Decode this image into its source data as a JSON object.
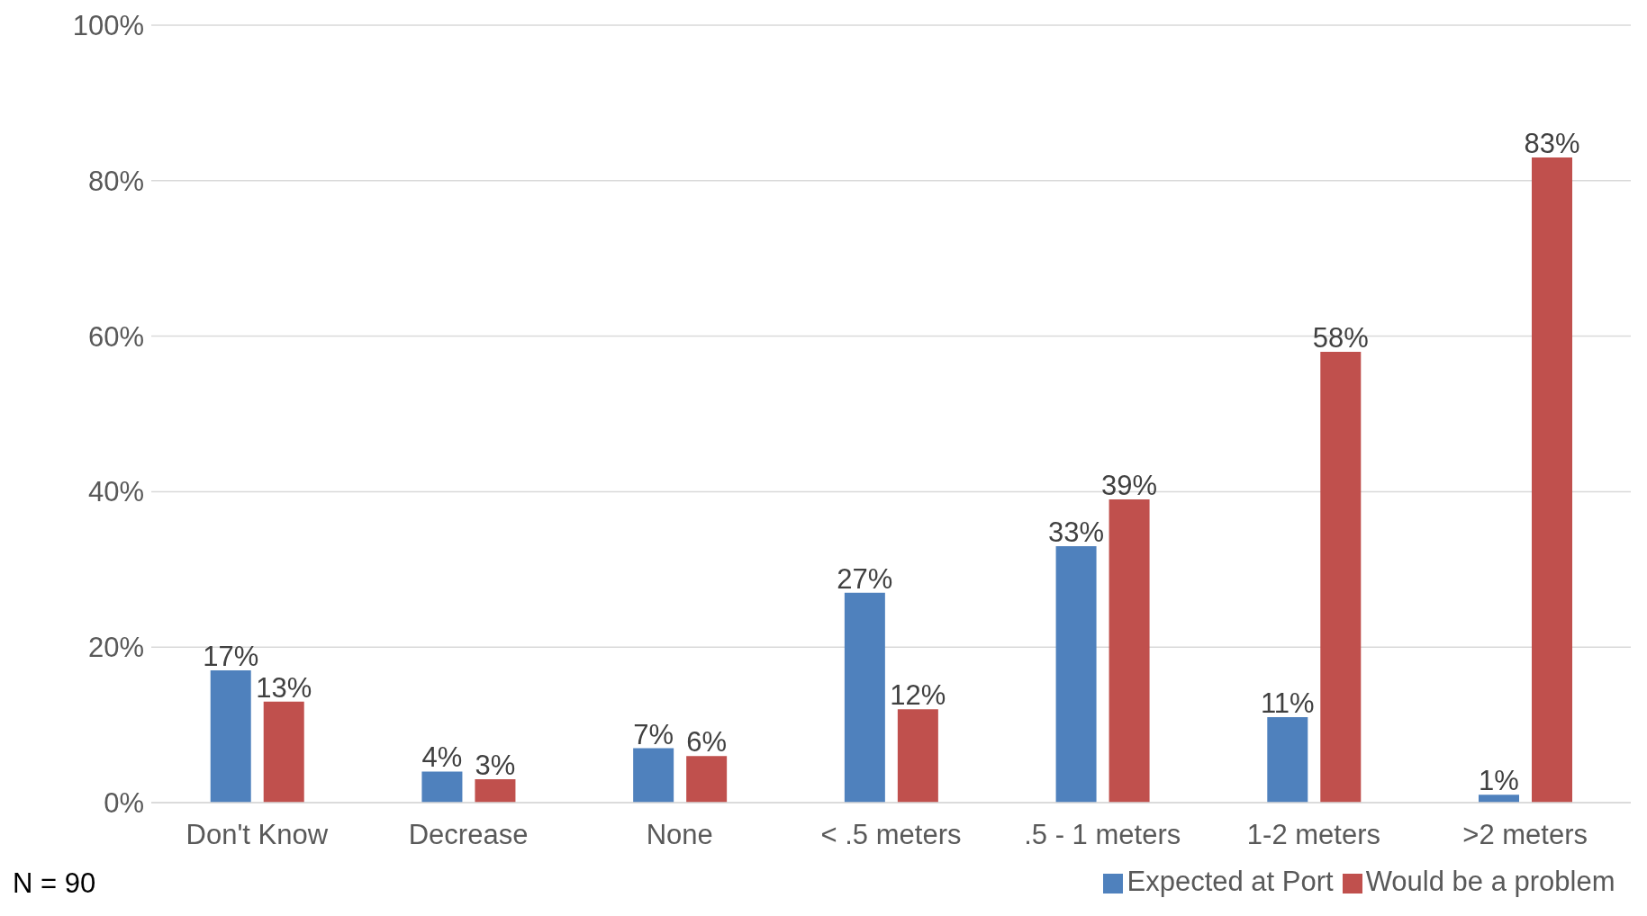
{
  "chart_data": {
    "type": "bar",
    "categories": [
      "Don't Know",
      "Decrease",
      "None",
      "< .5 meters",
      ".5 - 1 meters",
      "1-2 meters",
      ">2 meters"
    ],
    "series": [
      {
        "name": "Expected at Port",
        "color": "#4f81bd",
        "values": [
          17,
          4,
          7,
          27,
          33,
          11,
          1
        ],
        "value_labels": [
          "17%",
          "4%",
          "7%",
          "27%",
          "33%",
          "11%",
          "1%"
        ]
      },
      {
        "name": "Would be a problem",
        "color": "#c0504d",
        "values": [
          13,
          3,
          6,
          12,
          39,
          58,
          83
        ],
        "value_labels": [
          "13%",
          "3%",
          "6%",
          "12%",
          "39%",
          "58%",
          "83%"
        ]
      }
    ],
    "ylim": [
      0,
      100
    ],
    "yticks": [
      {
        "value": 0,
        "label": "0%"
      },
      {
        "value": 20,
        "label": "20%"
      },
      {
        "value": 40,
        "label": "40%"
      },
      {
        "value": 60,
        "label": "60%"
      },
      {
        "value": 80,
        "label": "80%"
      },
      {
        "value": 100,
        "label": "100%"
      }
    ],
    "grid": "y",
    "legend": "bottom",
    "annotations": [
      "N = 90"
    ]
  }
}
